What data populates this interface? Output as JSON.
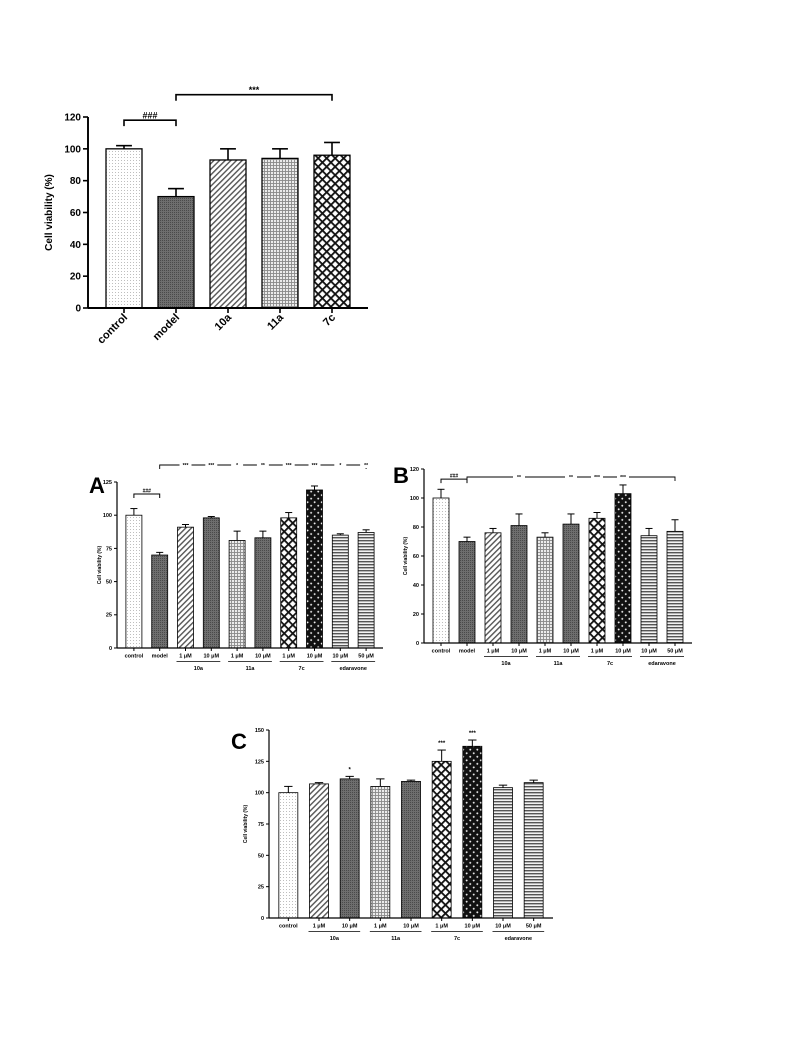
{
  "chart_data": [
    {
      "id": "top",
      "type": "bar",
      "ylabel": "Cell viability (%)",
      "ylim": [
        0,
        120
      ],
      "yticks": [
        0,
        20,
        40,
        60,
        80,
        100,
        120
      ],
      "categories": [
        "control",
        "model",
        "10a",
        "11a",
        "7c"
      ],
      "values": [
        100,
        70,
        93,
        94,
        96
      ],
      "errors": [
        2,
        5,
        7,
        6,
        8
      ],
      "patterns": [
        "dots",
        "dense",
        "diag",
        "grid",
        "check"
      ],
      "groups": [],
      "brackets": [
        {
          "from": 0,
          "to": 1,
          "label": "###",
          "y": 118
        },
        {
          "from": 1,
          "to": 4,
          "label": "***",
          "y": 134
        }
      ],
      "stars": []
    },
    {
      "id": "A",
      "panel_label": "A",
      "type": "bar",
      "ylabel": "Cell viability (%)",
      "ylim": [
        0,
        125
      ],
      "yticks": [
        0,
        25,
        50,
        75,
        100,
        125
      ],
      "categories": [
        "control",
        "model",
        "1 μM",
        "10 μM",
        "1 μM",
        "10 μM",
        "1 μM",
        "10 μM",
        "10 μM",
        "50 μM"
      ],
      "values": [
        100,
        70,
        91,
        98,
        81,
        83,
        98,
        119,
        85,
        87
      ],
      "errors": [
        5,
        2,
        2,
        1,
        7,
        5,
        4,
        3,
        1,
        2
      ],
      "patterns": [
        "dots",
        "dense",
        "diag",
        "dense",
        "grid",
        "dense",
        "check",
        "checkdark",
        "hstripe",
        "hstripe"
      ],
      "groups": [
        {
          "label": "10a",
          "from": 2,
          "to": 3
        },
        {
          "label": "11a",
          "from": 4,
          "to": 5
        },
        {
          "label": "7c",
          "from": 6,
          "to": 7
        },
        {
          "label": "edaravone",
          "from": 8,
          "to": 9
        }
      ],
      "brackets": [
        {
          "from": 0,
          "to": 1,
          "label": "###",
          "y": 116
        }
      ],
      "line_labels": [
        "***",
        "***",
        "*",
        "**",
        "***",
        "***",
        "*",
        "**"
      ],
      "stars": []
    },
    {
      "id": "B",
      "panel_label": "B",
      "type": "bar",
      "ylabel": "Cell viability (%)",
      "ylim": [
        0,
        120
      ],
      "yticks": [
        0,
        20,
        40,
        60,
        80,
        100,
        120
      ],
      "categories": [
        "control",
        "model",
        "1 μM",
        "10 μM",
        "1 μM",
        "10 μM",
        "1 μM",
        "10 μM",
        "10 μM",
        "50 μM"
      ],
      "values": [
        100,
        70,
        76,
        81,
        73,
        82,
        86,
        103,
        74,
        77
      ],
      "errors": [
        6,
        3,
        3,
        8,
        3,
        7,
        4,
        6,
        5,
        8
      ],
      "patterns": [
        "dots",
        "dense",
        "diag",
        "dense",
        "grid",
        "dense",
        "check",
        "checkdark",
        "hstripe",
        "hstripe"
      ],
      "groups": [
        {
          "label": "10a",
          "from": 2,
          "to": 3
        },
        {
          "label": "11a",
          "from": 4,
          "to": 5
        },
        {
          "label": "7c",
          "from": 6,
          "to": 7
        },
        {
          "label": "edaravone",
          "from": 8,
          "to": 9
        }
      ],
      "brackets": [
        {
          "from": 0,
          "to": 1,
          "label": "###",
          "y": 113
        }
      ],
      "line_labels": [
        "**",
        "**",
        "***",
        "***"
      ],
      "stars": []
    },
    {
      "id": "C",
      "panel_label": "C",
      "type": "bar",
      "ylabel": "Cell viability (%)",
      "ylim": [
        0,
        150
      ],
      "yticks": [
        0,
        25,
        50,
        75,
        100,
        125,
        150
      ],
      "categories": [
        "control",
        "1 μM",
        "10 μM",
        "1 μM",
        "10 μM",
        "1 μM",
        "10 μM",
        "10 μM",
        "50 μM"
      ],
      "values": [
        100,
        107,
        111,
        105,
        109,
        125,
        137,
        104,
        108
      ],
      "errors": [
        5,
        1,
        2,
        6,
        1,
        9,
        5,
        2,
        2
      ],
      "patterns": [
        "dots",
        "diag",
        "dense",
        "grid",
        "dense",
        "check",
        "checkdark",
        "hstripe",
        "hstripe"
      ],
      "groups": [
        {
          "label": "10a",
          "from": 1,
          "to": 2
        },
        {
          "label": "11a",
          "from": 3,
          "to": 4
        },
        {
          "label": "7c",
          "from": 5,
          "to": 6
        },
        {
          "label": "edaravone",
          "from": 7,
          "to": 8
        }
      ],
      "brackets": [],
      "stars": [
        {
          "index": 2,
          "label": "*"
        },
        {
          "index": 5,
          "label": "***"
        },
        {
          "index": 6,
          "label": "***"
        }
      ]
    }
  ]
}
